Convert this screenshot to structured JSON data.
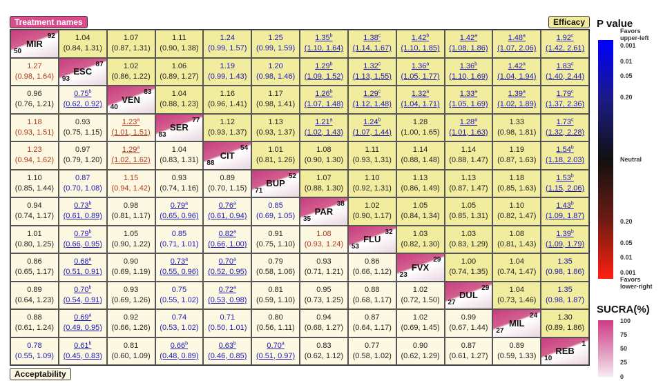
{
  "labels": {
    "treatment_names": "Treatment names",
    "efficacy": "Efficacy",
    "acceptability": "Acceptability"
  },
  "colors": {
    "upper_bg": "#f2ec9e",
    "lower_bg": "#fdf8e1",
    "blue_text": "#1a17b8",
    "red_text": "#b2361c",
    "black_text": "#222222",
    "diag_dark": "#c73d80"
  },
  "legend": {
    "p_title": "P value",
    "p_top_note": [
      "Favors",
      "upper-left"
    ],
    "p_top_ticks": [
      "0.001",
      "0.01",
      "0.05",
      "0.20"
    ],
    "p_mid": "Neutral",
    "p_bottom_ticks": [
      "0.20",
      "0.05",
      "0.01",
      "0.001"
    ],
    "p_bottom_note": [
      "Favors",
      "lower-right"
    ],
    "s_title": "SUCRA(%)",
    "s_ticks": [
      "100",
      "75",
      "50",
      "25",
      "0"
    ]
  },
  "chart_data": {
    "type": "table",
    "treatments": [
      "MIR",
      "ESC",
      "VEN",
      "SER",
      "CIT",
      "BUP",
      "PAR",
      "FLU",
      "FVX",
      "DUL",
      "MIL",
      "REB"
    ],
    "sucra_efficacy": [
      92,
      87,
      83,
      77,
      54,
      52,
      38,
      32,
      29,
      29,
      24,
      1
    ],
    "sucra_acceptability": [
      50,
      93,
      40,
      83,
      88,
      71,
      35,
      53,
      23,
      27,
      27,
      10
    ],
    "rows": [
      [
        null,
        {
          "v": "1.04",
          "ci": "(0.84, 1.31)",
          "c": "k"
        },
        {
          "v": "1.07",
          "ci": "(0.87, 1.31)",
          "c": "k"
        },
        {
          "v": "1.11",
          "ci": "(0.90, 1.38)",
          "c": "k"
        },
        {
          "v": "1.24",
          "ci": "(0.99, 1.57)",
          "c": "b"
        },
        {
          "v": "1.25",
          "ci": "(0.99, 1.59)",
          "c": "b"
        },
        {
          "v": "1.35",
          "sup": "b",
          "ci": "(1.10, 1.64)",
          "c": "b",
          "u": true
        },
        {
          "v": "1.38",
          "sup": "c",
          "ci": "(1.14, 1.67)",
          "c": "b",
          "u": true
        },
        {
          "v": "1.42",
          "sup": "b",
          "ci": "(1.10, 1.85)",
          "c": "b",
          "u": true
        },
        {
          "v": "1.42",
          "sup": "a",
          "ci": "(1.08, 1.86)",
          "c": "b",
          "u": true
        },
        {
          "v": "1.48",
          "sup": "a",
          "ci": "(1.07, 2.06)",
          "c": "b",
          "u": true
        },
        {
          "v": "1.92",
          "sup": "c",
          "ci": "(1.42, 2.61)",
          "c": "b",
          "u": true
        }
      ],
      [
        {
          "v": "1.27",
          "ci": "(0.98, 1.64)",
          "c": "r"
        },
        null,
        {
          "v": "1.02",
          "ci": "(0.86, 1.22)",
          "c": "k"
        },
        {
          "v": "1.06",
          "ci": "(0.89, 1.27)",
          "c": "k"
        },
        {
          "v": "1.19",
          "ci": "(0.99, 1.43)",
          "c": "b"
        },
        {
          "v": "1.20",
          "ci": "(0.98, 1.46)",
          "c": "b"
        },
        {
          "v": "1.29",
          "sup": "b",
          "ci": "(1.09, 1.52)",
          "c": "b",
          "u": true
        },
        {
          "v": "1.32",
          "sup": "c",
          "ci": "(1.13, 1.55)",
          "c": "b",
          "u": true
        },
        {
          "v": "1.36",
          "sup": "a",
          "ci": "(1.05, 1.77)",
          "c": "b",
          "u": true
        },
        {
          "v": "1.36",
          "sup": "b",
          "ci": "(1.10, 1.69)",
          "c": "b",
          "u": true
        },
        {
          "v": "1.42",
          "sup": "a",
          "ci": "(1.04, 1.94)",
          "c": "b",
          "u": true
        },
        {
          "v": "1.83",
          "sup": "c",
          "ci": "(1.40, 2.44)",
          "c": "b",
          "u": true
        }
      ],
      [
        {
          "v": "0.96",
          "ci": "(0.76, 1.21)",
          "c": "k"
        },
        {
          "v": "0.75",
          "sup": "b",
          "ci": "(0.62, 0.92)",
          "c": "b",
          "u": true
        },
        null,
        {
          "v": "1.04",
          "ci": "(0.88, 1.23)",
          "c": "k"
        },
        {
          "v": "1.16",
          "ci": "(0.96, 1.41)",
          "c": "k"
        },
        {
          "v": "1.17",
          "ci": "(0.98, 1.41)",
          "c": "k"
        },
        {
          "v": "1.26",
          "sup": "b",
          "ci": "(1.07, 1.48)",
          "c": "b",
          "u": true
        },
        {
          "v": "1.29",
          "sup": "c",
          "ci": "(1.12, 1.48)",
          "c": "b",
          "u": true
        },
        {
          "v": "1.32",
          "sup": "a",
          "ci": "(1.04, 1.71)",
          "c": "b",
          "u": true
        },
        {
          "v": "1.33",
          "sup": "a",
          "ci": "(1.05, 1.69)",
          "c": "b",
          "u": true
        },
        {
          "v": "1.39",
          "sup": "a",
          "ci": "(1.02, 1.89)",
          "c": "b",
          "u": true
        },
        {
          "v": "1.79",
          "sup": "c",
          "ci": "(1.37, 2.36)",
          "c": "b",
          "u": true
        }
      ],
      [
        {
          "v": "1.18",
          "ci": "(0.93, 1.51)",
          "c": "r"
        },
        {
          "v": "0.93",
          "ci": "(0.75, 1.15)",
          "c": "k"
        },
        {
          "v": "1.23",
          "sup": "a",
          "ci": "(1.01, 1.51)",
          "c": "r",
          "u": true
        },
        null,
        {
          "v": "1.12",
          "ci": "(0.93, 1.37)",
          "c": "k"
        },
        {
          "v": "1.13",
          "ci": "(0.93, 1.37)",
          "c": "k"
        },
        {
          "v": "1.21",
          "sup": "a",
          "ci": "(1.02, 1.43)",
          "c": "b",
          "u": true
        },
        {
          "v": "1.24",
          "sup": "b",
          "ci": "(1.07, 1.44)",
          "c": "b",
          "u": true
        },
        {
          "v": "1.28",
          "ci": "(1.00, 1.65)",
          "c": "k"
        },
        {
          "v": "1.28",
          "sup": "a",
          "ci": "(1.01, 1.63)",
          "c": "b",
          "u": true
        },
        {
          "v": "1.33",
          "ci": "(0.98, 1.81)",
          "c": "k"
        },
        {
          "v": "1.73",
          "sup": "c",
          "ci": "(1.32, 2.28)",
          "c": "b",
          "u": true
        }
      ],
      [
        {
          "v": "1.23",
          "ci": "(0.94, 1.62)",
          "c": "r"
        },
        {
          "v": "0.97",
          "ci": "(0.79, 1.20)",
          "c": "k"
        },
        {
          "v": "1.29",
          "sup": "a",
          "ci": "(1.02, 1.62)",
          "c": "r",
          "u": true
        },
        {
          "v": "1.04",
          "ci": "(0.83, 1.31)",
          "c": "k"
        },
        null,
        {
          "v": "1.01",
          "ci": "(0.81, 1.26)",
          "c": "k"
        },
        {
          "v": "1.08",
          "ci": "(0.90, 1.30)",
          "c": "k"
        },
        {
          "v": "1.11",
          "ci": "(0.93, 1.31)",
          "c": "k"
        },
        {
          "v": "1.14",
          "ci": "(0.88, 1.48)",
          "c": "k"
        },
        {
          "v": "1.14",
          "ci": "(0.88, 1.47)",
          "c": "k"
        },
        {
          "v": "1.19",
          "ci": "(0.87, 1.63)",
          "c": "k"
        },
        {
          "v": "1.54",
          "sup": "b",
          "ci": "(1.18, 2.03)",
          "c": "b",
          "u": true
        }
      ],
      [
        {
          "v": "1.10",
          "ci": "(0.85, 1.44)",
          "c": "k"
        },
        {
          "v": "0.87",
          "ci": "(0.70, 1.08)",
          "c": "b"
        },
        {
          "v": "1.15",
          "ci": "(0.94, 1.42)",
          "c": "r"
        },
        {
          "v": "0.93",
          "ci": "(0.74, 1.16)",
          "c": "k"
        },
        {
          "v": "0.89",
          "ci": "(0.70, 1.15)",
          "c": "k"
        },
        null,
        {
          "v": "1.07",
          "ci": "(0.88, 1.30)",
          "c": "k"
        },
        {
          "v": "1.10",
          "ci": "(0.92, 1.31)",
          "c": "k"
        },
        {
          "v": "1.13",
          "ci": "(0.86, 1.49)",
          "c": "k"
        },
        {
          "v": "1.13",
          "ci": "(0.87, 1.47)",
          "c": "k"
        },
        {
          "v": "1.18",
          "ci": "(0.85, 1.63)",
          "c": "k"
        },
        {
          "v": "1.53",
          "sup": "b",
          "ci": "(1.15, 2.06)",
          "c": "b",
          "u": true
        }
      ],
      [
        {
          "v": "0.94",
          "ci": "(0.74, 1.17)",
          "c": "k"
        },
        {
          "v": "0.73",
          "sup": "b",
          "ci": "(0.61, 0.89)",
          "c": "b",
          "u": true
        },
        {
          "v": "0.98",
          "ci": "(0.81, 1.17)",
          "c": "k"
        },
        {
          "v": "0.79",
          "sup": "a",
          "ci": "(0.65, 0.96)",
          "c": "b",
          "u": true
        },
        {
          "v": "0.76",
          "sup": "a",
          "ci": "(0.61, 0.94)",
          "c": "b",
          "u": true
        },
        {
          "v": "0.85",
          "ci": "(0.69, 1.05)",
          "c": "b"
        },
        null,
        {
          "v": "1.02",
          "ci": "(0.90, 1.17)",
          "c": "k"
        },
        {
          "v": "1.05",
          "ci": "(0.84, 1.34)",
          "c": "k"
        },
        {
          "v": "1.05",
          "ci": "(0.85, 1.31)",
          "c": "k"
        },
        {
          "v": "1.10",
          "ci": "(0.82, 1.47)",
          "c": "k"
        },
        {
          "v": "1.43",
          "sup": "b",
          "ci": "(1.09, 1.87)",
          "c": "b",
          "u": true
        }
      ],
      [
        {
          "v": "1.01",
          "ci": "(0.80, 1.25)",
          "c": "k"
        },
        {
          "v": "0.79",
          "sup": "b",
          "ci": "(0.66, 0.95)",
          "c": "b",
          "u": true
        },
        {
          "v": "1.05",
          "ci": "(0.90, 1.22)",
          "c": "k"
        },
        {
          "v": "0.85",
          "ci": "(0.71, 1.01)",
          "c": "b"
        },
        {
          "v": "0.82",
          "sup": "a",
          "ci": "(0.66, 1.00)",
          "c": "b",
          "u": true
        },
        {
          "v": "0.91",
          "ci": "(0.75, 1.10)",
          "c": "k"
        },
        {
          "v": "1.08",
          "ci": "(0.93, 1.24)",
          "c": "r"
        },
        null,
        {
          "v": "1.03",
          "ci": "(0.82, 1.30)",
          "c": "k"
        },
        {
          "v": "1.03",
          "ci": "(0.83, 1.29)",
          "c": "k"
        },
        {
          "v": "1.08",
          "ci": "(0.81, 1.43)",
          "c": "k"
        },
        {
          "v": "1.39",
          "sup": "b",
          "ci": "(1.09, 1.79)",
          "c": "b",
          "u": true
        }
      ],
      [
        {
          "v": "0.86",
          "ci": "(0.65, 1.17)",
          "c": "k"
        },
        {
          "v": "0.68",
          "sup": "a",
          "ci": "(0.51, 0.91)",
          "c": "b",
          "u": true
        },
        {
          "v": "0.90",
          "ci": "(0.69, 1.19)",
          "c": "k"
        },
        {
          "v": "0.73",
          "sup": "a",
          "ci": "(0.55, 0.96)",
          "c": "b",
          "u": true
        },
        {
          "v": "0.70",
          "sup": "a",
          "ci": "(0.52, 0.95)",
          "c": "b",
          "u": true
        },
        {
          "v": "0.79",
          "ci": "(0.58, 1.06)",
          "c": "k"
        },
        {
          "v": "0.93",
          "ci": "(0.71, 1.21)",
          "c": "k"
        },
        {
          "v": "0.86",
          "ci": "(0.66, 1.12)",
          "c": "k"
        },
        null,
        {
          "v": "1.00",
          "ci": "(0.74, 1.35)",
          "c": "k"
        },
        {
          "v": "1.04",
          "ci": "(0.74, 1.47)",
          "c": "k"
        },
        {
          "v": "1.35",
          "ci": "(0.98, 1.86)",
          "c": "b"
        }
      ],
      [
        {
          "v": "0.89",
          "ci": "(0.64, 1.23)",
          "c": "k"
        },
        {
          "v": "0.70",
          "sup": "b",
          "ci": "(0.54, 0.91)",
          "c": "b",
          "u": true
        },
        {
          "v": "0.93",
          "ci": "(0.69, 1.26)",
          "c": "k"
        },
        {
          "v": "0.75",
          "ci": "(0.55, 1.02)",
          "c": "b"
        },
        {
          "v": "0.72",
          "sup": "a",
          "ci": "(0.53, 0.98)",
          "c": "b",
          "u": true
        },
        {
          "v": "0.81",
          "ci": "(0.59, 1.10)",
          "c": "k"
        },
        {
          "v": "0.95",
          "ci": "(0.73, 1.25)",
          "c": "k"
        },
        {
          "v": "0.88",
          "ci": "(0.68, 1.17)",
          "c": "k"
        },
        {
          "v": "1.02",
          "ci": "(0.72, 1.50)",
          "c": "k"
        },
        null,
        {
          "v": "1.04",
          "ci": "(0.73, 1.46)",
          "c": "k"
        },
        {
          "v": "1.35",
          "ci": "(0.98, 1.87)",
          "c": "b"
        }
      ],
      [
        {
          "v": "0.88",
          "ci": "(0.61, 1.24)",
          "c": "k"
        },
        {
          "v": "0.69",
          "sup": "a",
          "ci": "(0.49, 0.95)",
          "c": "b",
          "u": true
        },
        {
          "v": "0.92",
          "ci": "(0.66, 1.26)",
          "c": "k"
        },
        {
          "v": "0.74",
          "ci": "(0.53, 1.02)",
          "c": "b"
        },
        {
          "v": "0.71",
          "ci": "(0.50, 1.01)",
          "c": "b"
        },
        {
          "v": "0.80",
          "ci": "(0.56, 1.11)",
          "c": "k"
        },
        {
          "v": "0.94",
          "ci": "(0.68, 1.27)",
          "c": "k"
        },
        {
          "v": "0.87",
          "ci": "(0.64, 1.17)",
          "c": "k"
        },
        {
          "v": "1.02",
          "ci": "(0.69, 1.45)",
          "c": "k"
        },
        {
          "v": "0.99",
          "ci": "(0.67, 1.44)",
          "c": "k"
        },
        null,
        {
          "v": "1.30",
          "ci": "(0.89, 1.86)",
          "c": "k"
        }
      ],
      [
        {
          "v": "0.78",
          "ci": "(0.55, 1.09)",
          "c": "b"
        },
        {
          "v": "0.61",
          "sup": "b",
          "ci": "(0.45, 0.83)",
          "c": "b",
          "u": true
        },
        {
          "v": "0.81",
          "ci": "(0.60, 1.09)",
          "c": "k"
        },
        {
          "v": "0.66",
          "sup": "b",
          "ci": "(0.48, 0.89)",
          "c": "b",
          "u": true
        },
        {
          "v": "0.63",
          "sup": "b",
          "ci": "(0.46, 0.85)",
          "c": "b",
          "u": true
        },
        {
          "v": "0.70",
          "sup": "a",
          "ci": "(0.51, 0.97)",
          "c": "b",
          "u": true
        },
        {
          "v": "0.83",
          "ci": "(0.62, 1.12)",
          "c": "k"
        },
        {
          "v": "0.77",
          "ci": "(0.58, 1.02)",
          "c": "k"
        },
        {
          "v": "0.90",
          "ci": "(0.62, 1.29)",
          "c": "k"
        },
        {
          "v": "0.87",
          "ci": "(0.61, 1.27)",
          "c": "k"
        },
        {
          "v": "0.89",
          "ci": "(0.59, 1.33)",
          "c": "k"
        },
        null
      ]
    ]
  }
}
